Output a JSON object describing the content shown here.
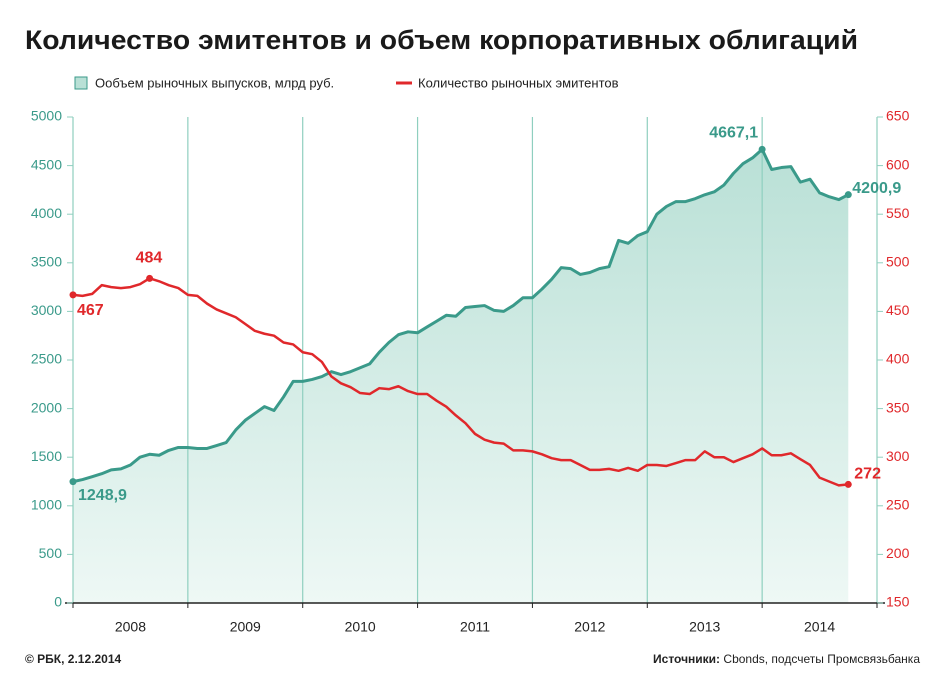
{
  "chart_data": {
    "type": "line",
    "title": "Количество эмитентов и объем корпоративных облигаций",
    "x": [
      2008,
      2008.083,
      2008.167,
      2008.25,
      2008.333,
      2008.417,
      2008.5,
      2008.583,
      2008.667,
      2008.75,
      2008.833,
      2008.917,
      2009,
      2009.083,
      2009.167,
      2009.25,
      2009.333,
      2009.417,
      2009.5,
      2009.583,
      2009.667,
      2009.75,
      2009.833,
      2009.917,
      2010,
      2010.083,
      2010.167,
      2010.25,
      2010.333,
      2010.417,
      2010.5,
      2010.583,
      2010.667,
      2010.75,
      2010.833,
      2010.917,
      2011,
      2011.083,
      2011.167,
      2011.25,
      2011.333,
      2011.417,
      2011.5,
      2011.583,
      2011.667,
      2011.75,
      2011.833,
      2011.917,
      2012,
      2012.083,
      2012.167,
      2012.25,
      2012.333,
      2012.417,
      2012.5,
      2012.583,
      2012.667,
      2012.75,
      2012.833,
      2012.917,
      2013,
      2013.083,
      2013.167,
      2013.25,
      2013.333,
      2013.417,
      2013.5,
      2013.583,
      2013.667,
      2013.75,
      2013.833,
      2013.917,
      2014,
      2014.083,
      2014.167,
      2014.25,
      2014.333,
      2014.417,
      2014.5,
      2014.583,
      2014.667,
      2014.75
    ],
    "series": [
      {
        "name": "Ообъем рыночных выпусков, млрд руб.",
        "color": "#3a9a8a",
        "area": true,
        "values": [
          1248.9,
          1270,
          1300,
          1330,
          1370,
          1380,
          1420,
          1500,
          1530,
          1520,
          1570,
          1600,
          1600,
          1590,
          1590,
          1620,
          1650,
          1780,
          1880,
          1950,
          2020,
          1980,
          2120,
          2280,
          2280,
          2300,
          2330,
          2380,
          2350,
          2380,
          2420,
          2460,
          2580,
          2680,
          2760,
          2790,
          2780,
          2840,
          2900,
          2960,
          2950,
          3040,
          3050,
          3060,
          3010,
          3000,
          3060,
          3140,
          3140,
          3230,
          3330,
          3450,
          3440,
          3380,
          3400,
          3440,
          3460,
          3730,
          3700,
          3780,
          3820,
          4000,
          4080,
          4130,
          4130,
          4160,
          4200,
          4230,
          4300,
          4420,
          4520,
          4580,
          4667.1,
          4460,
          4480,
          4490,
          4330,
          4360,
          4220,
          4180,
          4150,
          4200.9
        ],
        "value_labels": {
          "0": "1248,9",
          "72": "4667,1",
          "81": "4200,9"
        }
      },
      {
        "name": "Количество рыночных эмитентов",
        "color": "#e0282b",
        "axis": "y2",
        "values": [
          467,
          466,
          468,
          477,
          475,
          474,
          475,
          478,
          484,
          481,
          477,
          474,
          467,
          466,
          458,
          452,
          448,
          444,
          437,
          430,
          427,
          425,
          418,
          416,
          408,
          406,
          398,
          383,
          376,
          372,
          366,
          365,
          371,
          370,
          373,
          368,
          365,
          365,
          358,
          352,
          343,
          335,
          324,
          318,
          315,
          314,
          307,
          307,
          306,
          303,
          299,
          297,
          297,
          292,
          287,
          287,
          288,
          286,
          289,
          286,
          292,
          292,
          291,
          294,
          297,
          297,
          306,
          300,
          300,
          295,
          299,
          303,
          309,
          302,
          302,
          304,
          298,
          292,
          279,
          275,
          271,
          272
        ],
        "value_labels": {}
      }
    ],
    "xlim": [
      2008,
      2015
    ],
    "xticks": [
      {
        "value": 2008.5,
        "label": "2008"
      },
      {
        "value": 2009.5,
        "label": "2009"
      },
      {
        "value": 2010.5,
        "label": "2010"
      },
      {
        "value": 2011.5,
        "label": "2011"
      },
      {
        "value": 2012.5,
        "label": "2012"
      },
      {
        "value": 2013.5,
        "label": "2013"
      },
      {
        "value": 2014.5,
        "label": "2014"
      }
    ],
    "xgrid": [
      2009,
      2010,
      2011,
      2012,
      2013,
      2014
    ],
    "ylim": [
      0,
      5000
    ],
    "yticks": [
      0,
      500,
      1000,
      1500,
      2000,
      2500,
      3000,
      3500,
      4000,
      4500,
      5000
    ],
    "y2lim": [
      150,
      650
    ],
    "y2ticks": [
      150,
      200,
      250,
      300,
      350,
      400,
      450,
      500,
      550,
      600,
      650
    ],
    "grid": "x"
  },
  "footer": {
    "copyright": "© РБК, 2.12.2014",
    "source_label": "Источники:",
    "source": "Cbonds, подсчеты Промсвязьбанка"
  }
}
